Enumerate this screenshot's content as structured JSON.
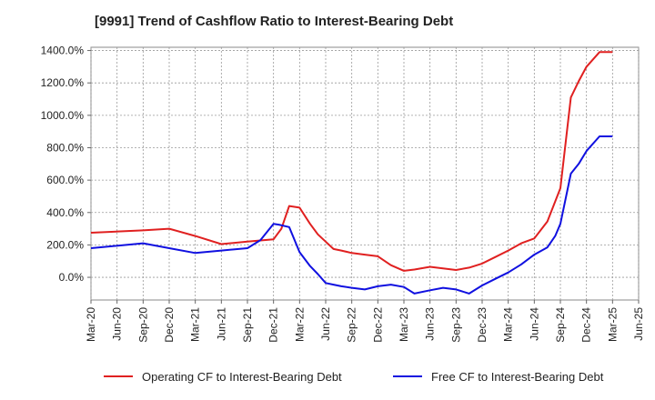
{
  "chart_data": {
    "type": "line",
    "title": "[9991]  Trend of Cashflow Ratio to Interest-Bearing Debt",
    "xlabel": "",
    "ylabel": "",
    "x_tick_labels": [
      "Mar-20",
      "Jun-20",
      "Sep-20",
      "Dec-20",
      "Mar-21",
      "Jun-21",
      "Sep-21",
      "Dec-21",
      "Mar-22",
      "Jun-22",
      "Sep-22",
      "Dec-22",
      "Mar-23",
      "Jun-23",
      "Sep-23",
      "Dec-23",
      "Mar-24",
      "Jun-24",
      "Sep-24",
      "Dec-24",
      "Mar-25",
      "Jun-25"
    ],
    "y_tick_labels": [
      "1400.0%",
      "1200.0%",
      "1000.0%",
      "800.0%",
      "600.0%",
      "400.0%",
      "200.0%",
      "0.0%"
    ],
    "y_ticks": [
      1400,
      1200,
      1000,
      800,
      600,
      400,
      200,
      0
    ],
    "ylim": [
      -140,
      1420
    ],
    "grid": true,
    "legend_position": "bottom",
    "series": [
      {
        "name": "Operating CF to Interest-Bearing Debt",
        "color": "#e02020",
        "x": [
          0,
          2,
          3,
          4,
          5,
          6,
          7,
          7.3,
          7.6,
          8,
          8.4,
          8.7,
          9,
          9.3,
          9.6,
          10,
          10.5,
          11,
          11.5,
          12,
          12.4,
          13,
          13.5,
          14,
          14.5,
          15,
          15.5,
          16,
          16.5,
          17,
          17.5,
          18,
          18.4,
          18.7,
          19,
          19.5,
          20
        ],
        "values": [
          275,
          290,
          300,
          255,
          205,
          220,
          235,
          300,
          440,
          430,
          330,
          265,
          220,
          175,
          165,
          150,
          140,
          130,
          75,
          40,
          48,
          65,
          55,
          45,
          60,
          85,
          125,
          165,
          210,
          240,
          345,
          550,
          1110,
          1210,
          1300,
          1390,
          1390
        ]
      },
      {
        "name": "Free CF to Interest-Bearing Debt",
        "color": "#1010e0",
        "x": [
          0,
          2,
          3,
          4,
          5,
          6,
          6.5,
          7,
          7.2,
          7.6,
          8,
          8.4,
          8.7,
          9,
          9.3,
          9.6,
          10,
          10.5,
          11,
          11.5,
          12,
          12.4,
          13,
          13.5,
          14,
          14.5,
          15,
          15.5,
          16,
          16.5,
          17,
          17.5,
          17.8,
          18,
          18.4,
          18.7,
          19,
          19.5,
          20
        ],
        "values": [
          180,
          210,
          180,
          150,
          165,
          180,
          230,
          330,
          325,
          310,
          155,
          70,
          20,
          -35,
          -45,
          -55,
          -65,
          -75,
          -55,
          -45,
          -60,
          -100,
          -80,
          -65,
          -75,
          -100,
          -50,
          -10,
          30,
          80,
          140,
          185,
          255,
          330,
          640,
          700,
          780,
          870,
          870
        ]
      }
    ]
  }
}
